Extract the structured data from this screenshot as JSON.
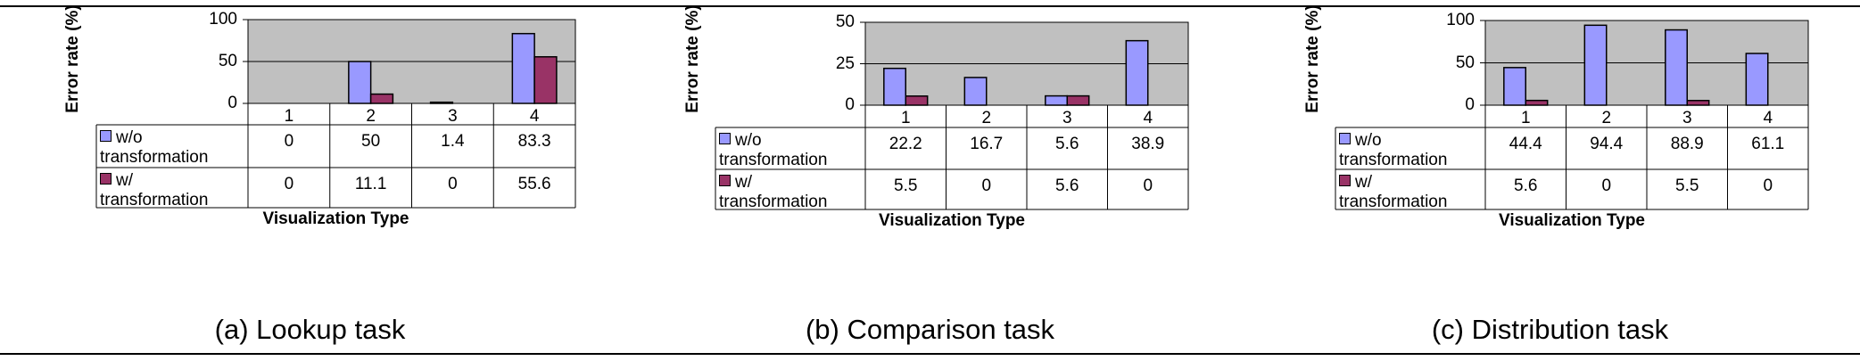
{
  "colors": {
    "wo": "#9999ff",
    "w": "#993366",
    "plot_bg": "#c0c0c0"
  },
  "chart_data": [
    {
      "type": "bar",
      "caption": "(a) Lookup task",
      "ylabel": "Error rate (%)",
      "xlabel": "Visualization Type",
      "categories": [
        "1",
        "2",
        "3",
        "4"
      ],
      "ylim": [
        0,
        100
      ],
      "yticks": [
        0,
        50,
        100
      ],
      "series": [
        {
          "name": "w/o transformation",
          "name_lines": [
            "w/o",
            "transformation"
          ],
          "values": [
            0,
            50,
            1.4,
            83.3
          ],
          "labels": [
            "0",
            "50",
            "1.4",
            "83.3"
          ]
        },
        {
          "name": "w/ transformation",
          "name_lines": [
            "w/",
            "transformation"
          ],
          "values": [
            0,
            11.1,
            0,
            55.6
          ],
          "labels": [
            "0",
            "11.1",
            "0",
            "55.6"
          ]
        }
      ]
    },
    {
      "type": "bar",
      "caption": "(b) Comparison task",
      "ylabel": "Error rate (%)",
      "xlabel": "Visualization Type",
      "categories": [
        "1",
        "2",
        "3",
        "4"
      ],
      "ylim": [
        0,
        50
      ],
      "yticks": [
        0,
        25,
        50
      ],
      "series": [
        {
          "name": "w/o transformation",
          "name_lines": [
            "w/o",
            "transformation"
          ],
          "values": [
            22.2,
            16.7,
            5.6,
            38.9
          ],
          "labels": [
            "22.2",
            "16.7",
            "5.6",
            "38.9"
          ]
        },
        {
          "name": "w/ transformation",
          "name_lines": [
            "w/",
            "transformation"
          ],
          "values": [
            5.5,
            0,
            5.6,
            0
          ],
          "labels": [
            "5.5",
            "0",
            "5.6",
            "0"
          ]
        }
      ]
    },
    {
      "type": "bar",
      "caption": "(c) Distribution task",
      "ylabel": "Error rate (%)",
      "xlabel": "Visualization Type",
      "categories": [
        "1",
        "2",
        "3",
        "4"
      ],
      "ylim": [
        0,
        100
      ],
      "yticks": [
        0,
        50,
        100
      ],
      "series": [
        {
          "name": "w/o transformation",
          "name_lines": [
            "w/o",
            "transformation"
          ],
          "values": [
            44.4,
            94.4,
            88.9,
            61.1
          ],
          "labels": [
            "44.4",
            "94.4",
            "88.9",
            "61.1"
          ]
        },
        {
          "name": "w/ transformation",
          "name_lines": [
            "w/",
            "transformation"
          ],
          "values": [
            5.6,
            0,
            5.5,
            0
          ],
          "labels": [
            "5.6",
            "0",
            "5.5",
            "0"
          ]
        }
      ]
    }
  ]
}
